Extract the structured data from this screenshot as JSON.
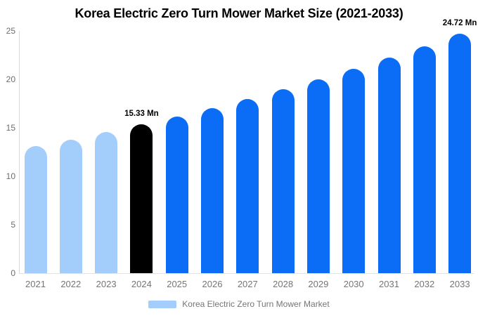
{
  "title": "Korea Electric Zero Turn Mower Market Size (2021-2033)",
  "legend": {
    "label": "Korea Electric Zero Turn Mower Market",
    "swatch_color": "#a3cdfa"
  },
  "colors": {
    "historical_bar": "#a3cdfa",
    "highlight_bar": "#000000",
    "forecast_bar": "#0b6cf5",
    "axis_line": "#d9d9d9",
    "tick_text": "#757575",
    "annotation_text": "#000000"
  },
  "chart_data": {
    "type": "bar",
    "title": "Korea Electric Zero Turn Mower Market Size (2021-2033)",
    "categories": [
      "2021",
      "2022",
      "2023",
      "2024",
      "2025",
      "2026",
      "2027",
      "2028",
      "2029",
      "2030",
      "2031",
      "2032",
      "2033"
    ],
    "values": [
      13.08,
      13.79,
      14.54,
      15.33,
      16.17,
      17.05,
      17.97,
      18.95,
      19.99,
      21.07,
      22.22,
      23.43,
      24.72
    ],
    "unit": "Mn",
    "xlabel": "",
    "ylabel": "",
    "ylim": [
      0,
      25
    ],
    "yticks": [
      0,
      5,
      10,
      15,
      20,
      25
    ],
    "grid": false,
    "legend_position": "bottom",
    "historical_years": [
      "2021",
      "2022",
      "2023"
    ],
    "highlight_year": "2024",
    "annotations": [
      {
        "year": "2024",
        "text": "15.33 Mn"
      },
      {
        "year": "2033",
        "text": "24.72 Mn"
      }
    ]
  }
}
